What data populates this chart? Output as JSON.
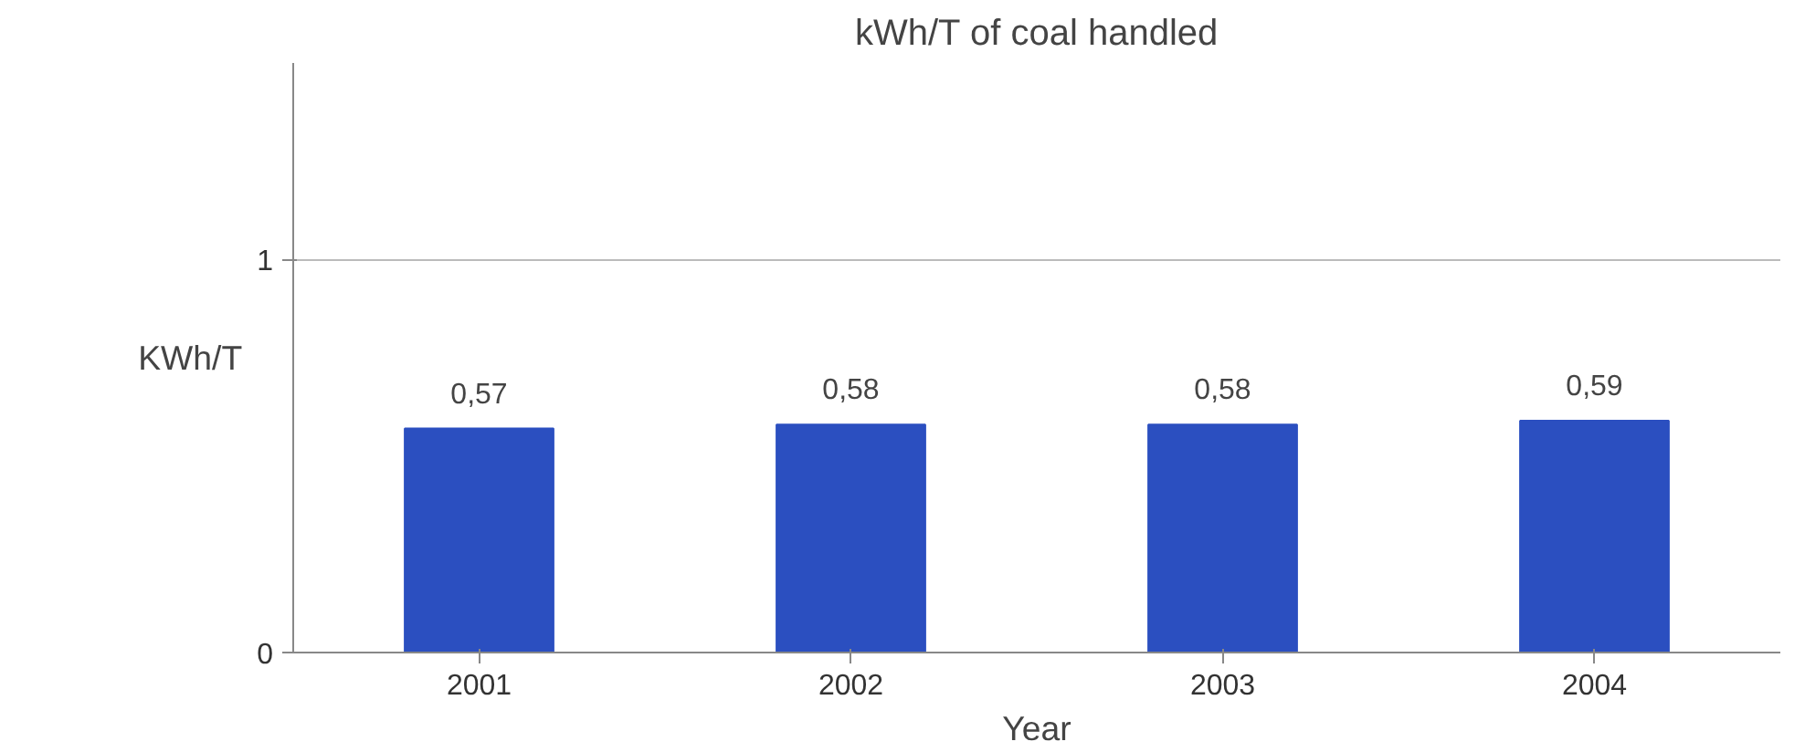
{
  "chart_data": {
    "type": "bar",
    "title": "kWh/T of coal handled",
    "xlabel": "Year",
    "ylabel": "KWh/T",
    "categories": [
      "2001",
      "2002",
      "2003",
      "2004"
    ],
    "values": [
      0.57,
      0.58,
      0.58,
      0.59
    ],
    "value_labels": [
      "0,57",
      "0,58",
      "0,58",
      "0,59"
    ],
    "color": "#2b4fc0",
    "ylim": [
      0,
      1.5
    ],
    "yticks": [
      0,
      1
    ],
    "grid": "y"
  }
}
